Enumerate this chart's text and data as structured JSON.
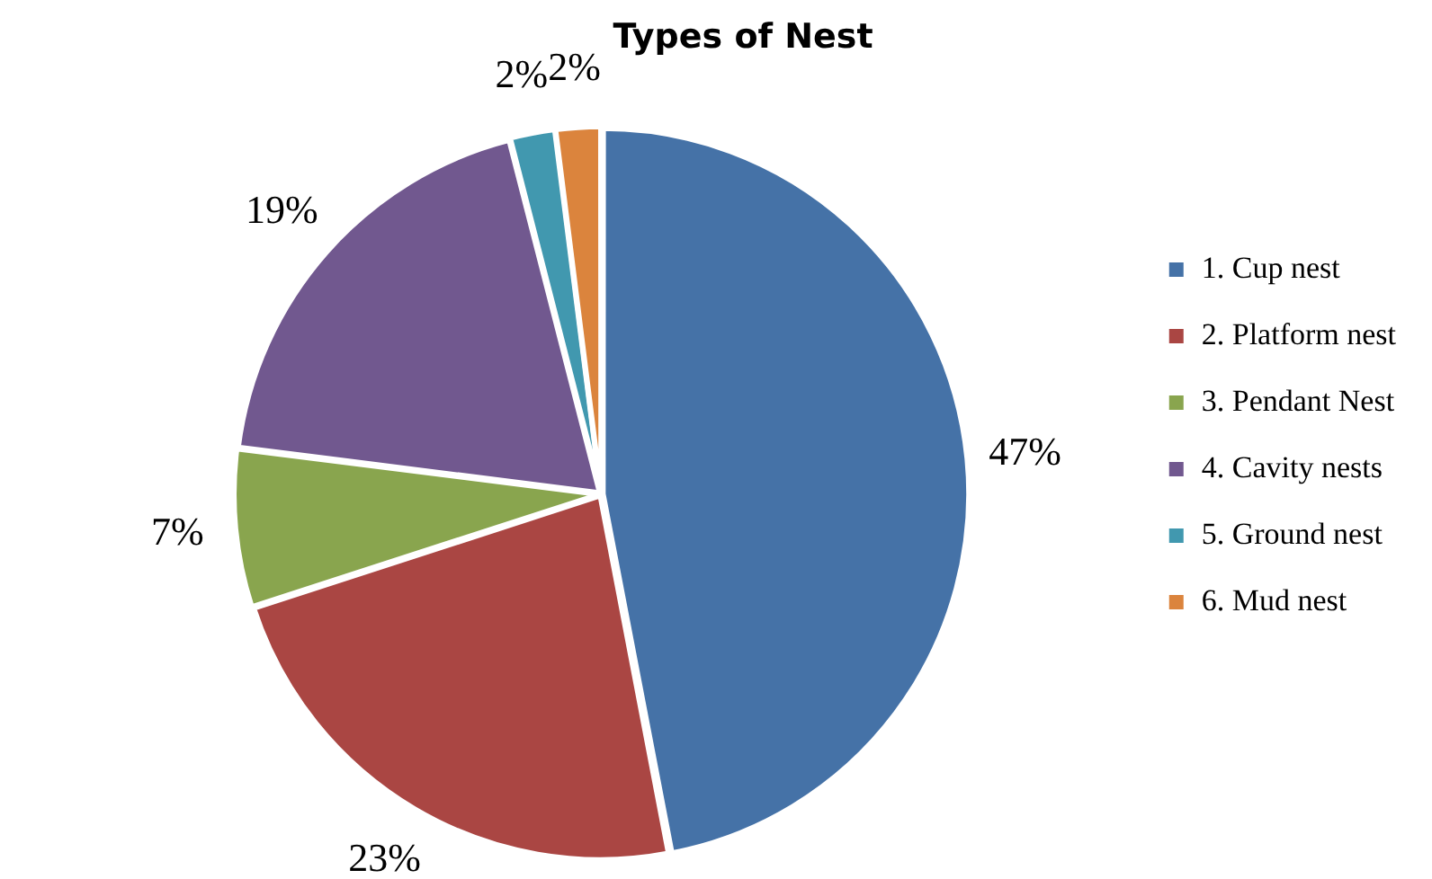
{
  "chart_data": {
    "type": "pie",
    "title": "Types of Nest",
    "categories": [
      "1. Cup nest",
      "2. Platform nest",
      "3. Pendant Nest",
      "4. Cavity nests",
      "5. Ground nest",
      "6. Mud nest"
    ],
    "values": [
      47,
      23,
      7,
      19,
      2,
      2
    ],
    "value_labels": [
      "47%",
      "23%",
      "7%",
      "19%",
      "2%",
      "2%"
    ],
    "colors": [
      "#4572a7",
      "#aa4643",
      "#89a54e",
      "#71588f",
      "#4198af",
      "#db843d"
    ],
    "legend": "right"
  }
}
